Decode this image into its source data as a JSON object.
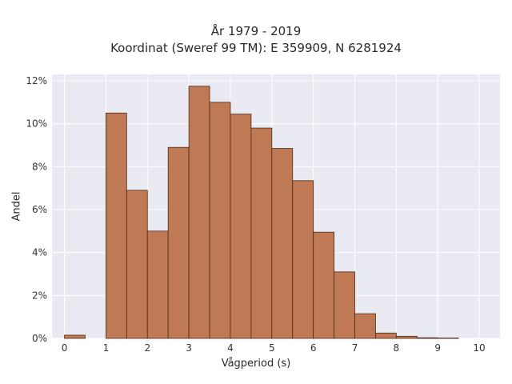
{
  "title_line1": "År 1979 - 2019",
  "title_line2": "Koordinat (Sweref 99 TM): E 359909, N 6281924",
  "colors": {
    "background": "#ffffff",
    "plot_area": "#eaeaf2",
    "grid": "#ffffff",
    "bar_fill": "#bf7a55",
    "bar_edge": "#4a2a1a"
  },
  "chart_data": {
    "type": "bar",
    "title": "År 1979 - 2019\nKoordinat (Sweref 99 TM): E 359909, N 6281924",
    "xlabel": "Vågperiod (s)",
    "ylabel": "Andel",
    "bin_width": 0.5,
    "bins_start": [
      0,
      0.5,
      1,
      1.5,
      2,
      2.5,
      3,
      3.5,
      4,
      4.5,
      5,
      5.5,
      6,
      6.5,
      7,
      7.5,
      8,
      8.5,
      9,
      9.5
    ],
    "values": [
      0.15,
      0,
      10.5,
      6.9,
      5.0,
      8.9,
      11.75,
      11.0,
      10.45,
      9.8,
      8.85,
      7.35,
      4.95,
      3.1,
      1.15,
      0.25,
      0.1,
      0.03,
      0.02,
      0
    ],
    "unit": "%",
    "xlim": [
      -0.3,
      10.5
    ],
    "ylim": [
      0,
      12.3
    ],
    "xticks": [
      0,
      1,
      2,
      3,
      4,
      5,
      6,
      7,
      8,
      9,
      10
    ],
    "yticks": [
      0,
      2,
      4,
      6,
      8,
      10,
      12
    ],
    "ytick_labels": [
      "0%",
      "2%",
      "4%",
      "6%",
      "8%",
      "10%",
      "12%"
    ],
    "grid": true
  }
}
